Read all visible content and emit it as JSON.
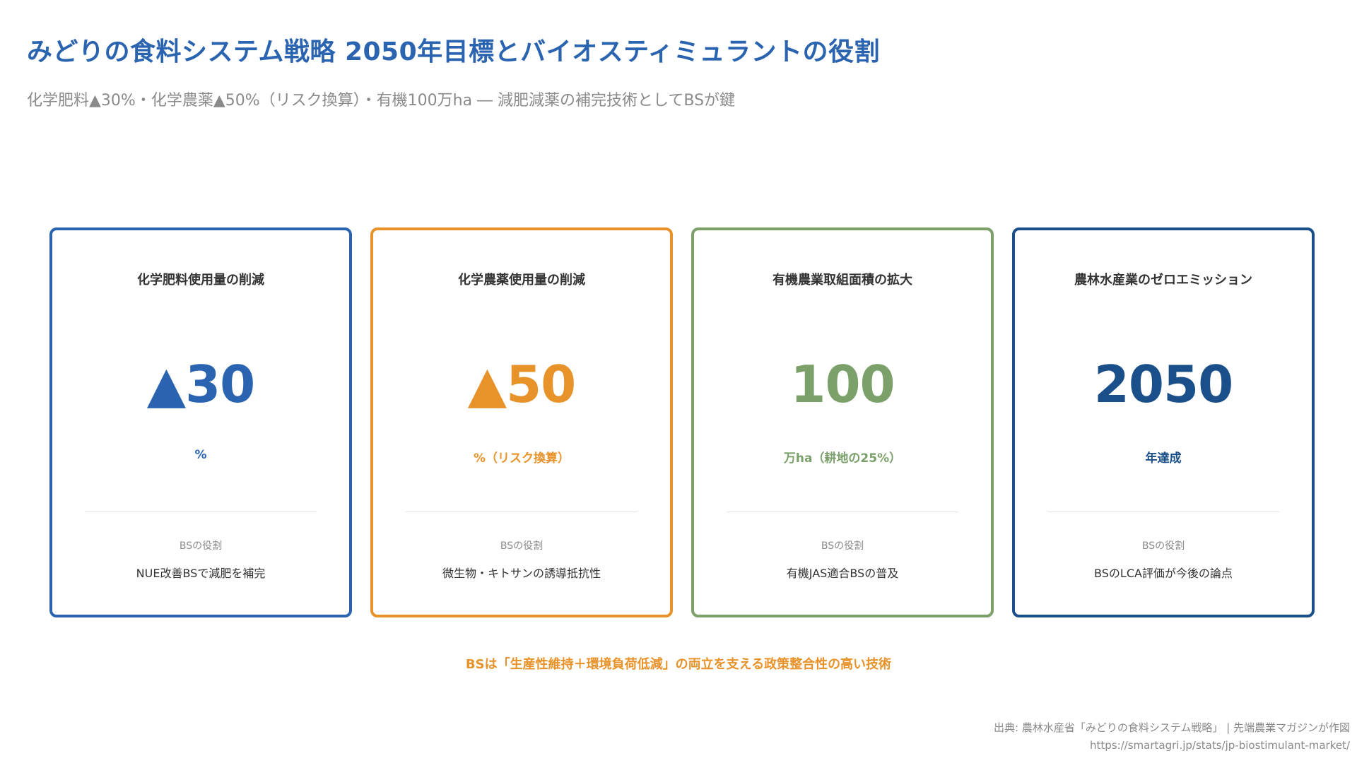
{
  "header": {
    "title": "みどりの食料システム戦略 2050年目標とバイオスティミュラントの役割",
    "subtitle": "化学肥料▲30%・化学農薬▲50%（リスク換算）・有機100万ha ― 減肥減薬の補完技術としてBSが鍵"
  },
  "role_label": "BSの役割",
  "cards": [
    {
      "heading": "化学肥料使用量の削減",
      "value": "▲30",
      "unit": "%",
      "role": "NUE改善BSで減肥を補完",
      "color": "#2a64b0"
    },
    {
      "heading": "化学農薬使用量の削減",
      "value": "▲50",
      "unit": "%（リスク換算）",
      "role": "微生物・キトサンの誘導抵抗性",
      "color": "#e8922a"
    },
    {
      "heading": "有機農業取組面積の拡大",
      "value": "100",
      "unit": "万ha（耕地の25%）",
      "role": "有機JAS適合BSの普及",
      "color": "#7ba06a"
    },
    {
      "heading": "農林水産業のゼロエミッション",
      "value": "2050",
      "unit": "年達成",
      "role": "BSのLCA評価が今後の論点",
      "color": "#1a4f8a"
    }
  ],
  "summary": "BSは「生産性維持＋環境負荷低減」の両立を支える政策整合性の高い技術",
  "source": {
    "line1": "出典: 農林水産省「みどりの食料システム戦略」 | 先端農業マガジンが作図",
    "line2": "https://smartagri.jp/stats/jp-biostimulant-market/"
  }
}
